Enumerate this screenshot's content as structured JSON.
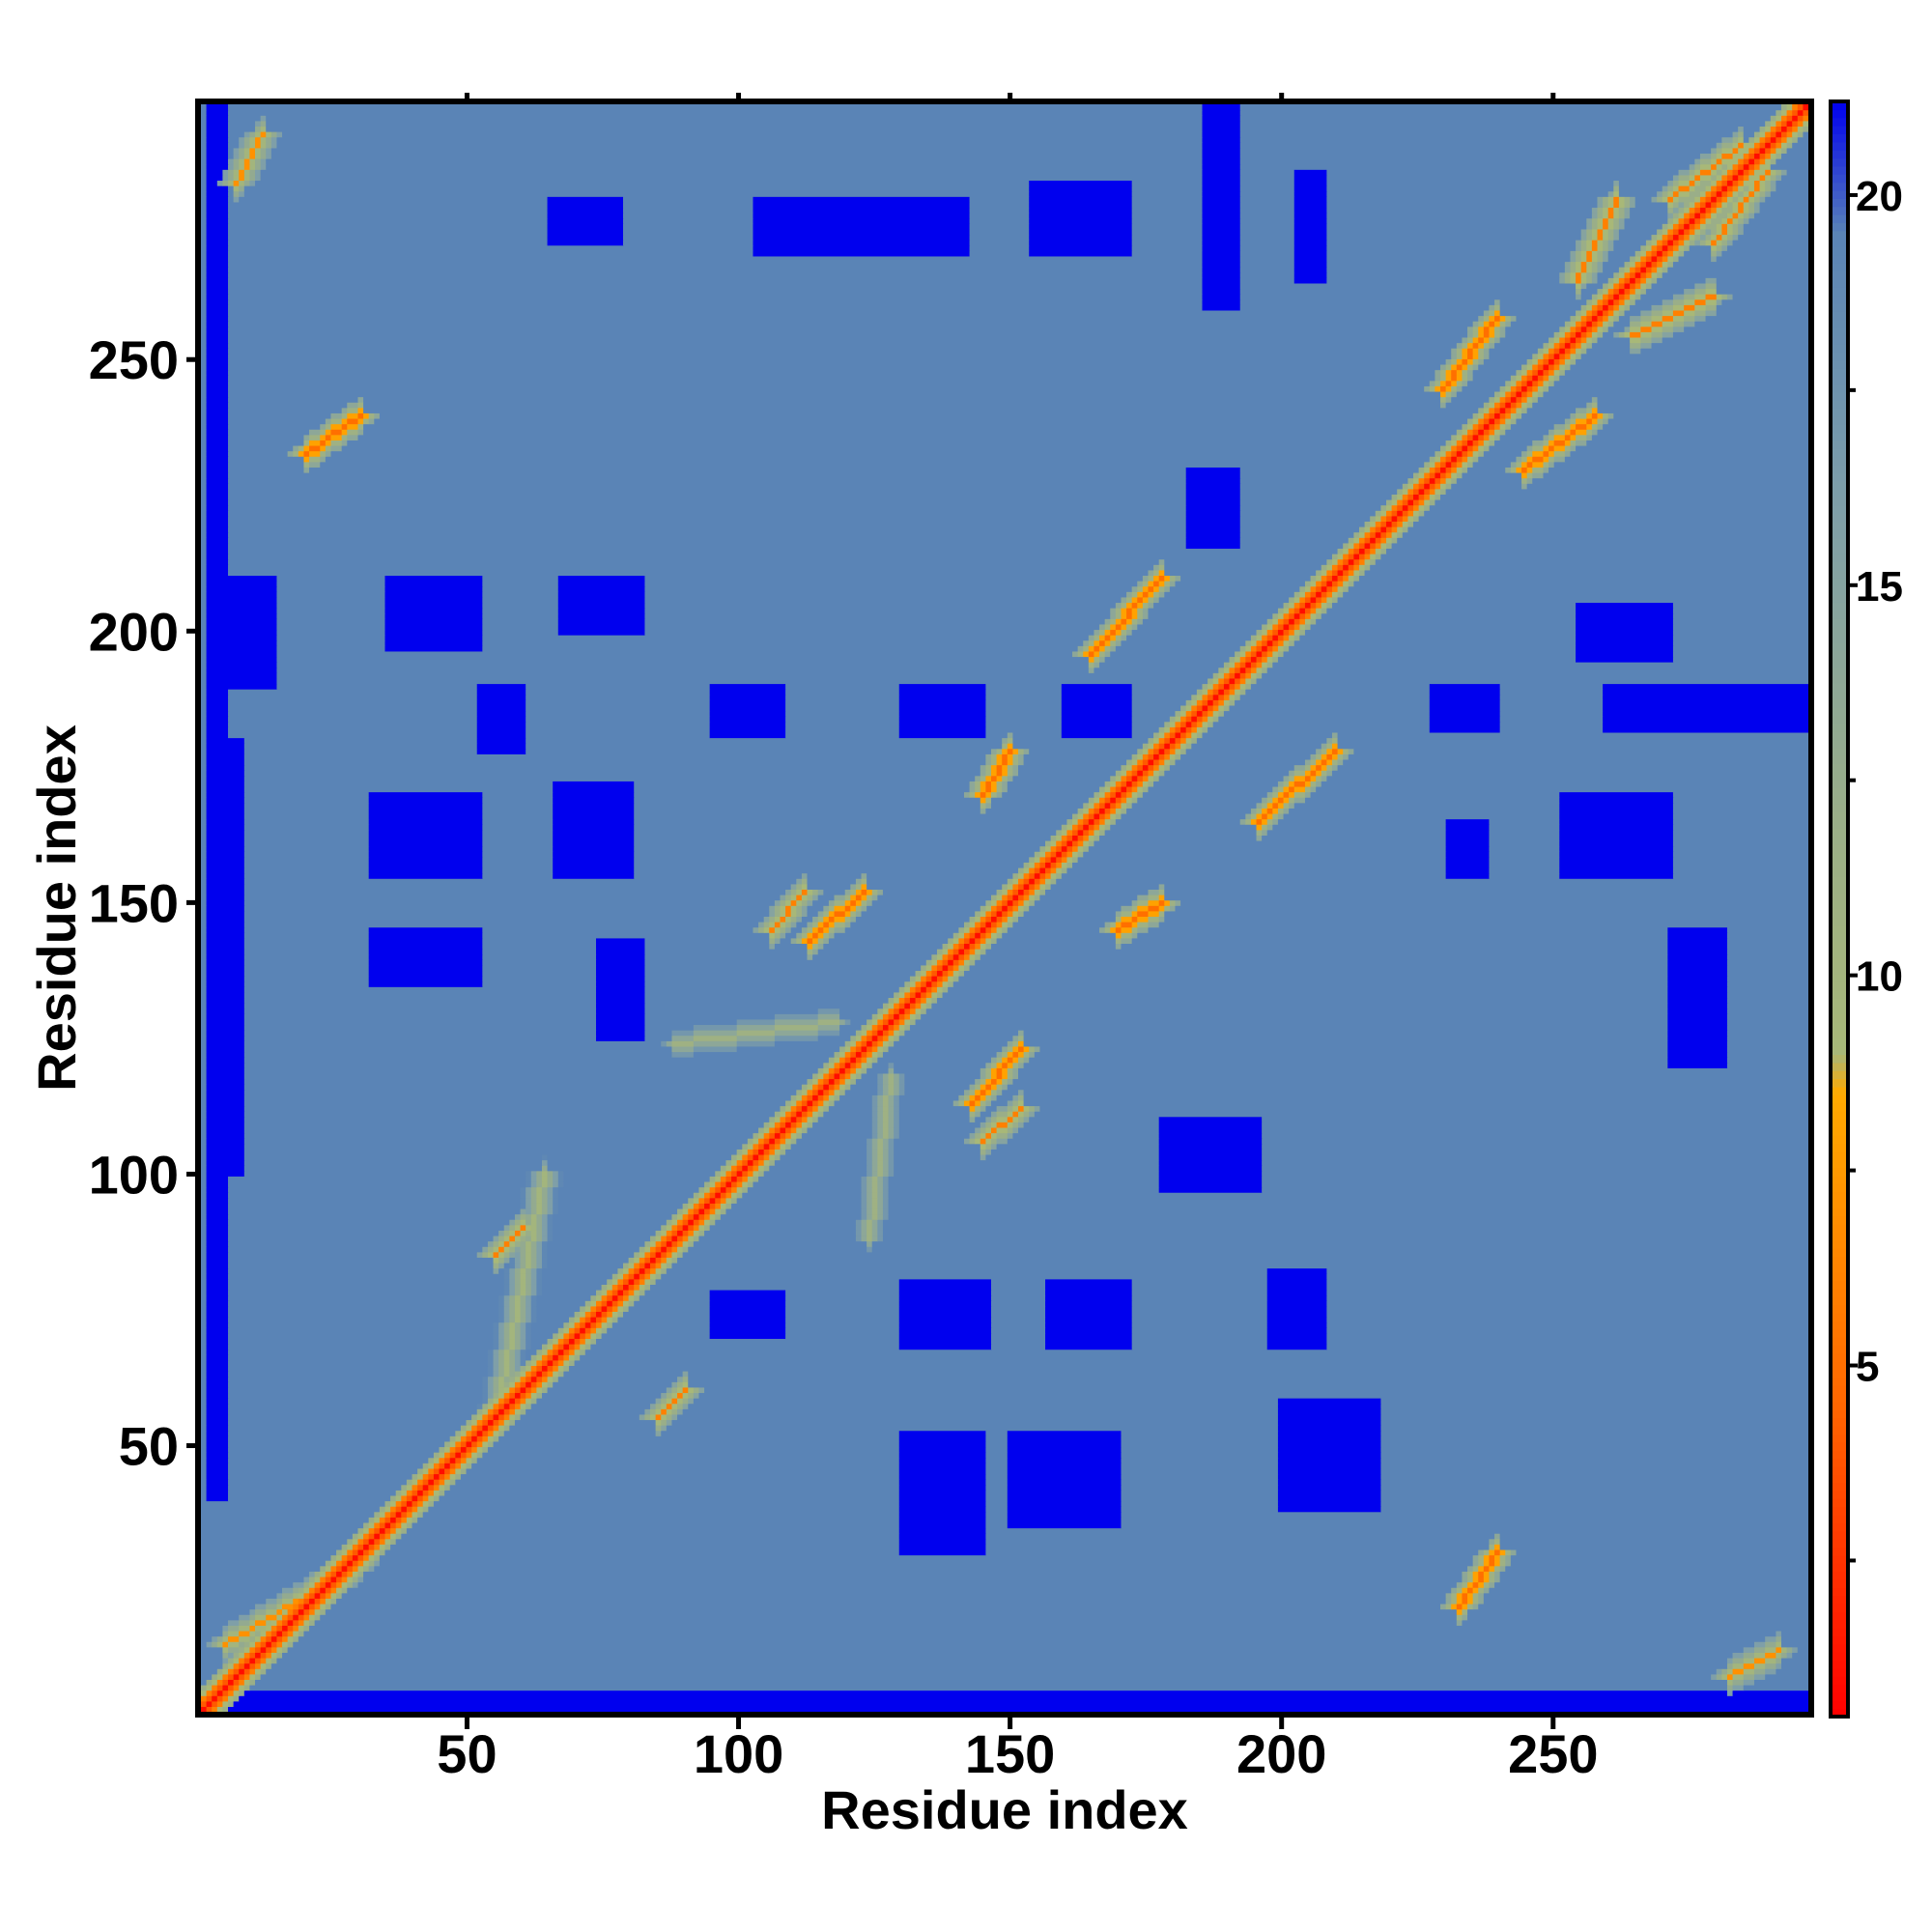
{
  "chart_data": {
    "type": "heatmap",
    "title": "",
    "xlabel": "Residue index",
    "ylabel": "Residue index",
    "xlim": [
      1,
      297
    ],
    "ylim": [
      1,
      297
    ],
    "x_ticks": [
      50,
      100,
      150,
      200,
      250
    ],
    "y_ticks": [
      50,
      100,
      150,
      200,
      250
    ],
    "colorbar": {
      "range": [
        0.5,
        21.2
      ],
      "ticks": [
        5,
        10,
        15,
        20
      ],
      "stops": [
        {
          "value": 0.5,
          "color": "#ff0000"
        },
        {
          "value": 4.5,
          "color": "#ff6600"
        },
        {
          "value": 8.5,
          "color": "#ffaa00"
        },
        {
          "value": 9.0,
          "color": "#a8b878"
        },
        {
          "value": 12.0,
          "color": "#9aae88"
        },
        {
          "value": 16.0,
          "color": "#7f9fa8"
        },
        {
          "value": 19.5,
          "color": "#5a84b6"
        },
        {
          "value": 21.2,
          "color": "#0000ee"
        }
      ]
    },
    "cell_value_scale": "distance, lower = closer contact",
    "background_value": 19.5,
    "diagonal_value": 1,
    "diagonal_band": [
      {
        "offset": 1,
        "value": 4
      },
      {
        "offset": 2,
        "value": 6
      },
      {
        "offset": 3,
        "value": 9
      },
      {
        "offset": 4,
        "value": 12
      }
    ],
    "contact_segments": [
      {
        "x": [
          5,
          30
        ],
        "y": [
          13,
          28
        ],
        "value": 7
      },
      {
        "x": [
          55,
          64
        ],
        "y": [
          55,
          100
        ],
        "value": 10
      },
      {
        "x": [
          113,
          123
        ],
        "y": [
          143,
          152
        ],
        "value": 5
      },
      {
        "x": [
          143,
          152
        ],
        "y": [
          113,
          123
        ],
        "value": 5
      },
      {
        "x": [
          145,
          150
        ],
        "y": [
          170,
          178
        ],
        "value": 5
      },
      {
        "x": [
          170,
          178
        ],
        "y": [
          145,
          150
        ],
        "value": 5
      },
      {
        "x": [
          165,
          178
        ],
        "y": [
          196,
          210
        ],
        "value": 5
      },
      {
        "x": [
          196,
          210
        ],
        "y": [
          165,
          178
        ],
        "value": 5
      },
      {
        "x": [
          178,
          195
        ],
        "y": [
          178,
          195
        ],
        "value": 6
      },
      {
        "x": [
          20,
          30
        ],
        "y": [
          233,
          240
        ],
        "value": 5
      },
      {
        "x": [
          233,
          240
        ],
        "y": [
          20,
          30
        ],
        "value": 5
      },
      {
        "x": [
          245,
          258
        ],
        "y": [
          230,
          240
        ],
        "value": 5
      },
      {
        "x": [
          230,
          240
        ],
        "y": [
          245,
          258
        ],
        "value": 5
      },
      {
        "x": [
          265,
          280
        ],
        "y": [
          255,
          262
        ],
        "value": 6
      },
      {
        "x": [
          255,
          262
        ],
        "y": [
          265,
          280
        ],
        "value": 6
      },
      {
        "x": [
          272,
          285
        ],
        "y": [
          280,
          290
        ],
        "value": 6
      },
      {
        "x": [
          280,
          290
        ],
        "y": [
          272,
          285
        ],
        "value": 6
      },
      {
        "x": [
          55,
          60
        ],
        "y": [
          85,
          90
        ],
        "value": 6
      },
      {
        "x": [
          85,
          90
        ],
        "y": [
          55,
          60
        ],
        "value": 6
      },
      {
        "x": [
          145,
          152
        ],
        "y": [
          106,
          112
        ],
        "value": 6
      },
      {
        "x": [
          106,
          112
        ],
        "y": [
          145,
          152
        ],
        "value": 6
      },
      {
        "x": [
          88,
          118
        ],
        "y": [
          124,
          128
        ],
        "value": 11
      },
      {
        "x": [
          124,
          128
        ],
        "y": [
          88,
          118
        ],
        "value": 11
      },
      {
        "x": [
          7,
          12
        ],
        "y": [
          283,
          292
        ],
        "value": 7
      },
      {
        "x": [
          283,
          292
        ],
        "y": [
          7,
          12
        ],
        "value": 7
      }
    ],
    "blue_patches": [
      {
        "x": [
          35,
          52
        ],
        "y": [
          197,
          210
        ]
      },
      {
        "x": [
          67,
          82
        ],
        "y": [
          200,
          210
        ]
      },
      {
        "x": [
          32,
          52
        ],
        "y": [
          155,
          170
        ]
      },
      {
        "x": [
          66,
          80
        ],
        "y": [
          155,
          172
        ]
      },
      {
        "x": [
          32,
          52
        ],
        "y": [
          135,
          145
        ]
      },
      {
        "x": [
          74,
          82
        ],
        "y": [
          125,
          143
        ]
      },
      {
        "x": [
          95,
          108
        ],
        "y": [
          181,
          190
        ]
      },
      {
        "x": [
          130,
          145
        ],
        "y": [
          181,
          190
        ]
      },
      {
        "x": [
          160,
          172
        ],
        "y": [
          181,
          190
        ]
      },
      {
        "x": [
          183,
          192
        ],
        "y": [
          216,
          230
        ]
      },
      {
        "x": [
          186,
          192
        ],
        "y": [
          260,
          297
        ]
      },
      {
        "x": [
          203,
          208
        ],
        "y": [
          265,
          285
        ]
      },
      {
        "x": [
          154,
          172
        ],
        "y": [
          270,
          283
        ]
      },
      {
        "x": [
          103,
          142
        ],
        "y": [
          270,
          280
        ]
      },
      {
        "x": [
          65,
          78
        ],
        "y": [
          272,
          280
        ]
      },
      {
        "x": [
          178,
          196
        ],
        "y": [
          97,
          110
        ]
      },
      {
        "x": [
          200,
          218
        ],
        "y": [
          38,
          58
        ]
      },
      {
        "x": [
          150,
          170
        ],
        "y": [
          35,
          52
        ]
      },
      {
        "x": [
          130,
          145
        ],
        "y": [
          30,
          52
        ]
      },
      {
        "x": [
          157,
          172
        ],
        "y": [
          68,
          80
        ]
      },
      {
        "x": [
          130,
          146
        ],
        "y": [
          68,
          80
        ]
      },
      {
        "x": [
          198,
          208
        ],
        "y": [
          68,
          82
        ]
      },
      {
        "x": [
          95,
          108
        ],
        "y": [
          70,
          78
        ]
      },
      {
        "x": [
          2,
          14
        ],
        "y": [
          190,
          210
        ]
      },
      {
        "x": [
          2,
          8
        ],
        "y": [
          100,
          180
        ]
      },
      {
        "x": [
          2,
          297
        ],
        "y": [
          1,
          4
        ]
      },
      {
        "x": [
          2,
          5
        ],
        "y": [
          40,
          297
        ]
      },
      {
        "x": [
          252,
          272
        ],
        "y": [
          155,
          170
        ]
      },
      {
        "x": [
          255,
          272
        ],
        "y": [
          195,
          205
        ]
      },
      {
        "x": [
          228,
          240
        ],
        "y": [
          182,
          190
        ]
      },
      {
        "x": [
          260,
          297
        ],
        "y": [
          182,
          190
        ]
      },
      {
        "x": [
          272,
          282
        ],
        "y": [
          120,
          145
        ]
      },
      {
        "x": [
          231,
          238
        ],
        "y": [
          155,
          165
        ]
      },
      {
        "x": [
          52,
          60
        ],
        "y": [
          178,
          190
        ]
      }
    ]
  }
}
